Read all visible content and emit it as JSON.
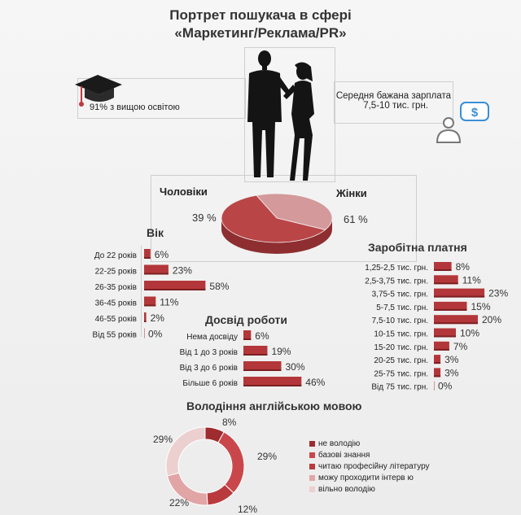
{
  "title": {
    "line1": "Портрет пошукача в сфері",
    "line2": "«Маркетинг/Реклама/PR»"
  },
  "education": {
    "text": "91% з вищою освітою",
    "icon": "graduation-cap-icon"
  },
  "salary_wish": {
    "line1": "Середня бажана зарплата",
    "line2": "7,5-10 тис. грн.",
    "icon": "person-money-icon"
  },
  "gender": {
    "men_label": "Чоловіки",
    "women_label": "Жінки",
    "men_pct_label": "39 %",
    "women_pct_label": "61 %"
  },
  "chart_data": [
    {
      "type": "pie",
      "categories": [
        "Чоловіки",
        "Жінки"
      ],
      "values": [
        39,
        61
      ],
      "value_labels": [
        "39 %",
        "61 %"
      ],
      "colors": [
        "#d4999b",
        "#b94547"
      ]
    },
    {
      "type": "bar",
      "title": "Вік",
      "categories": [
        "До 22 років",
        "22-25 років",
        "26-35 років",
        "36-45 років",
        "46-55 років",
        "Від 55 років"
      ],
      "values": [
        6,
        23,
        58,
        11,
        2,
        0
      ],
      "value_labels": [
        "6%",
        "23%",
        "58%",
        "11%",
        "2%",
        "0%"
      ],
      "color": "#b3373a"
    },
    {
      "type": "bar",
      "title": "Досвід роботи",
      "categories": [
        "Нема досвіду",
        "Від 1 до 3 років",
        "Від 3 до 6 років",
        "Більше 6 років"
      ],
      "values": [
        6,
        19,
        30,
        46
      ],
      "value_labels": [
        "6%",
        "19%",
        "30%",
        "46%"
      ],
      "color": "#b3373a"
    },
    {
      "type": "bar",
      "title": "Заробітна платня",
      "categories": [
        "1,25-2,5 тис. грн.",
        "2,5-3,75 тис. грн.",
        "3,75-5 тис. грн.",
        "5-7,5 тис. грн.",
        "7,5-10 тис. грн.",
        "10-15 тис. грн.",
        "15-20 тис. грн.",
        "20-25 тис. грн.",
        "25-75 тис. грн.",
        "Від 75 тис. грн."
      ],
      "values": [
        8,
        11,
        23,
        15,
        20,
        10,
        7,
        3,
        3,
        0
      ],
      "value_labels": [
        "8%",
        "11%",
        "23%",
        "15%",
        "20%",
        "10%",
        "7%",
        "3%",
        "3%",
        "0%"
      ],
      "color": "#b3373a"
    },
    {
      "type": "pie",
      "title": "Володіння англійською мовою",
      "categories": [
        "не володію",
        "базові знання",
        "читаю професійну літературу",
        "можу проходити інтерв ю",
        "вільно володію"
      ],
      "values": [
        8,
        29,
        12,
        22,
        29
      ],
      "value_labels": [
        "8%",
        "29%",
        "12%",
        "22%",
        "29%"
      ],
      "colors": [
        "#9e2b2e",
        "#c9474a",
        "#b93a3d",
        "#e2a5a6",
        "#eccfcf"
      ],
      "legend": "right"
    }
  ]
}
